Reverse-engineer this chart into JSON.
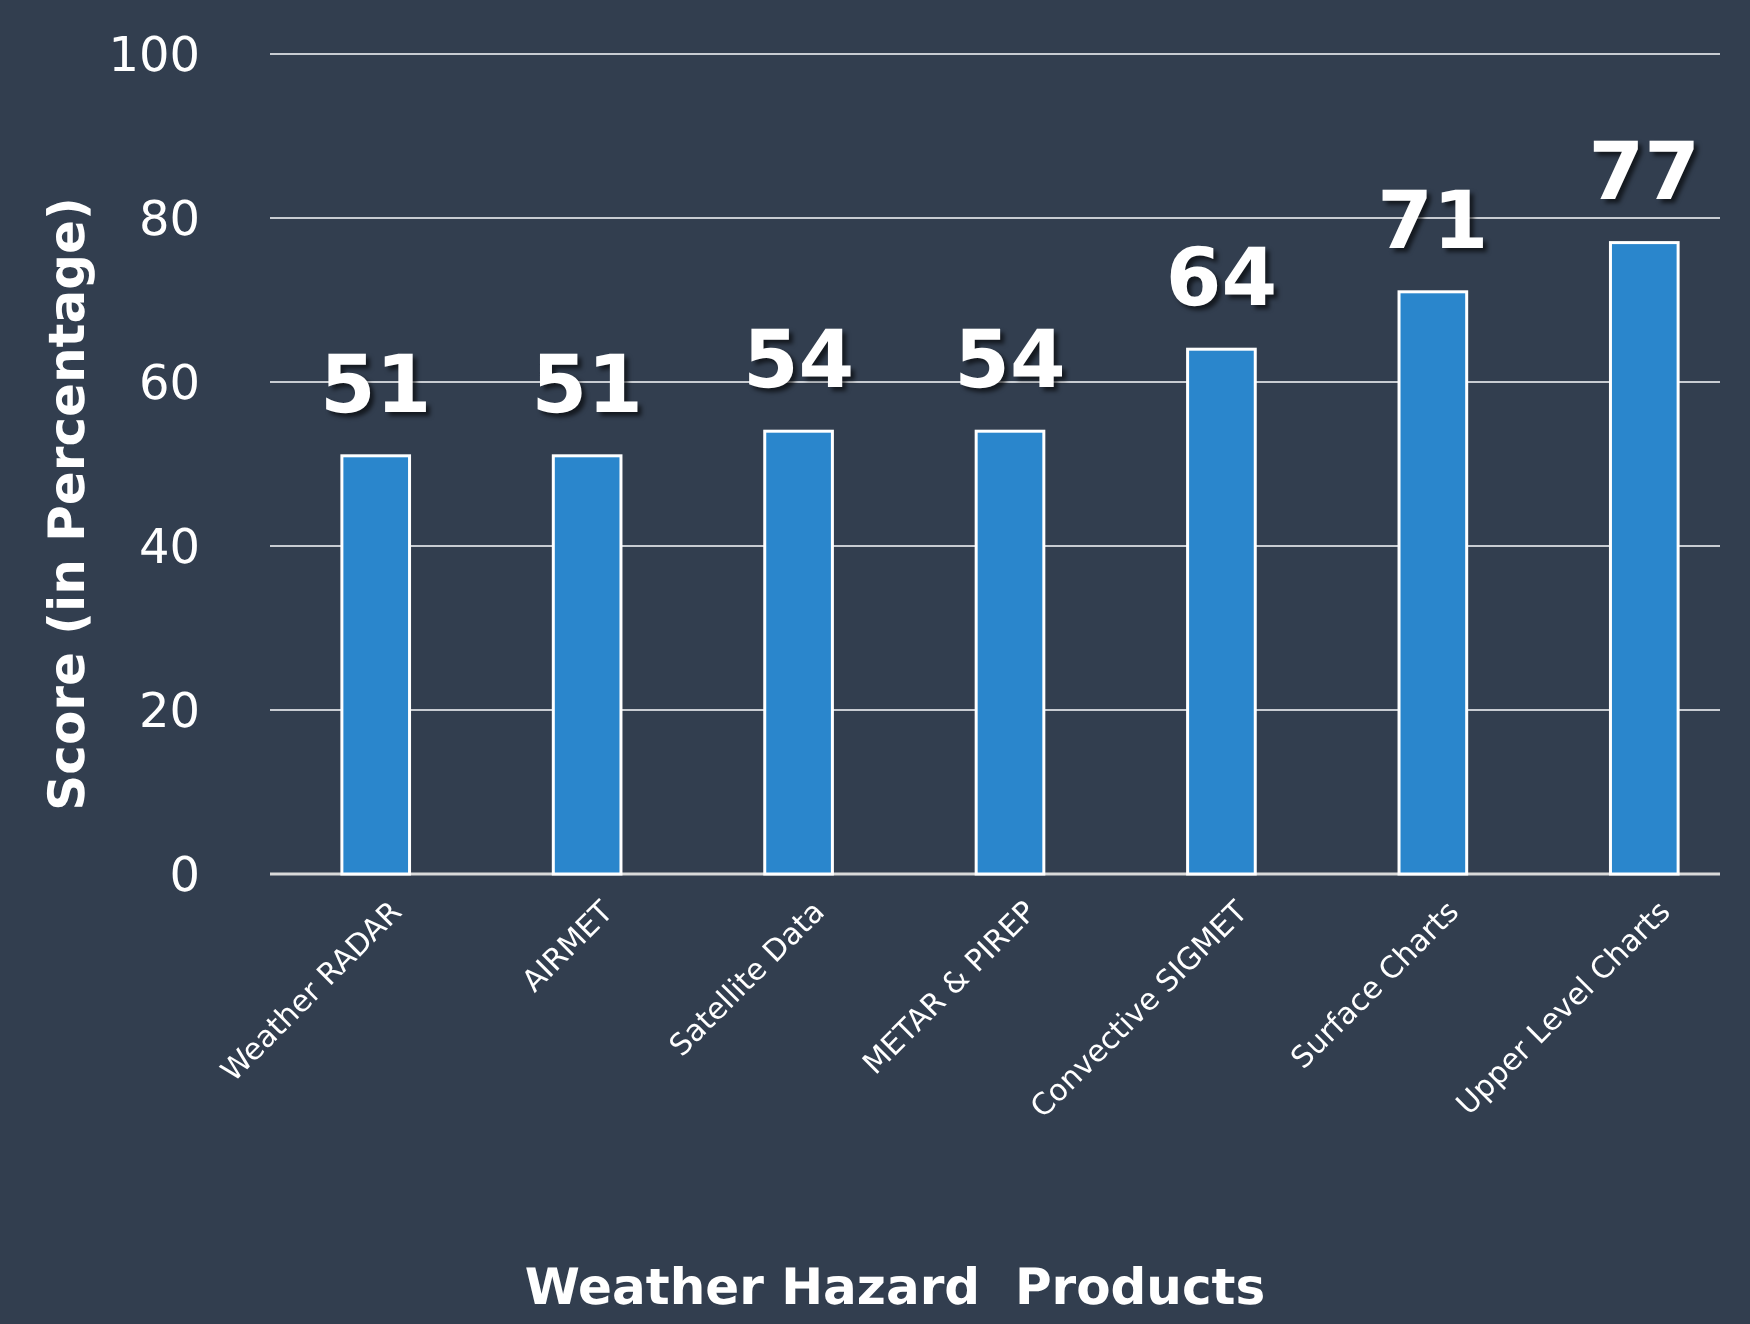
{
  "chart_data": {
    "type": "bar",
    "xlabel": "Weather Hazard  Products",
    "ylabel": "Score (in Percentage)",
    "categories": [
      "Weather RADAR",
      "AIRMET",
      "Satellite Data",
      "METAR & PIREP",
      "Convective SIGMET",
      "Surface Charts",
      "Upper Level Charts"
    ],
    "values": [
      51,
      51,
      54,
      54,
      64,
      71,
      77
    ],
    "color": "#2a86cc",
    "ylim": [
      0,
      100
    ],
    "yticks": [
      0,
      20,
      40,
      60,
      80,
      100
    ],
    "grid": "y",
    "data_labels": true
  }
}
